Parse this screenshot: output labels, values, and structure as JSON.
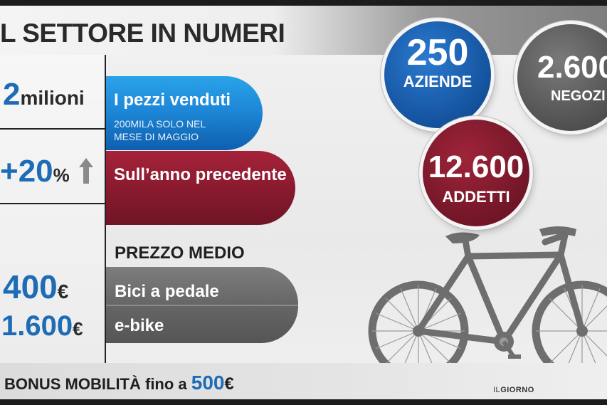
{
  "title": "L SETTORE IN NUMERI",
  "stats": {
    "sold": {
      "value": "2",
      "unit": "milioni",
      "label": "I pezzi venduti",
      "note_line1": "200MILA SOLO NEL",
      "note_line2": "MESE DI MAGGIO"
    },
    "growth": {
      "value": "+20",
      "unit": "%",
      "label": "Sull’anno precedente"
    },
    "price_heading": "PREZZO MEDIO",
    "price_bike": {
      "value": "400",
      "unit": "€",
      "label": "Bici a pedale"
    },
    "price_ebike": {
      "value": "1.600",
      "unit": "€",
      "label": "e-bike"
    }
  },
  "circles": {
    "companies": {
      "value": "250",
      "label": "AZIENDE"
    },
    "shops": {
      "value": "2.600",
      "label": "NEGOZI"
    },
    "workers": {
      "value": "12.600",
      "label": "ADDETTI"
    }
  },
  "bonus": {
    "text": "BONUS MOBILITÀ fino a",
    "value": "500",
    "unit": "€"
  },
  "credit": {
    "prefix": "IL",
    "name": "GIORNO"
  },
  "colors": {
    "blue": "#1e6cb6",
    "red": "#8b1a2e",
    "grey": "#666666"
  },
  "icons": {
    "growth_arrow": "up-arrow-icon",
    "bike": "bicycle-icon"
  }
}
